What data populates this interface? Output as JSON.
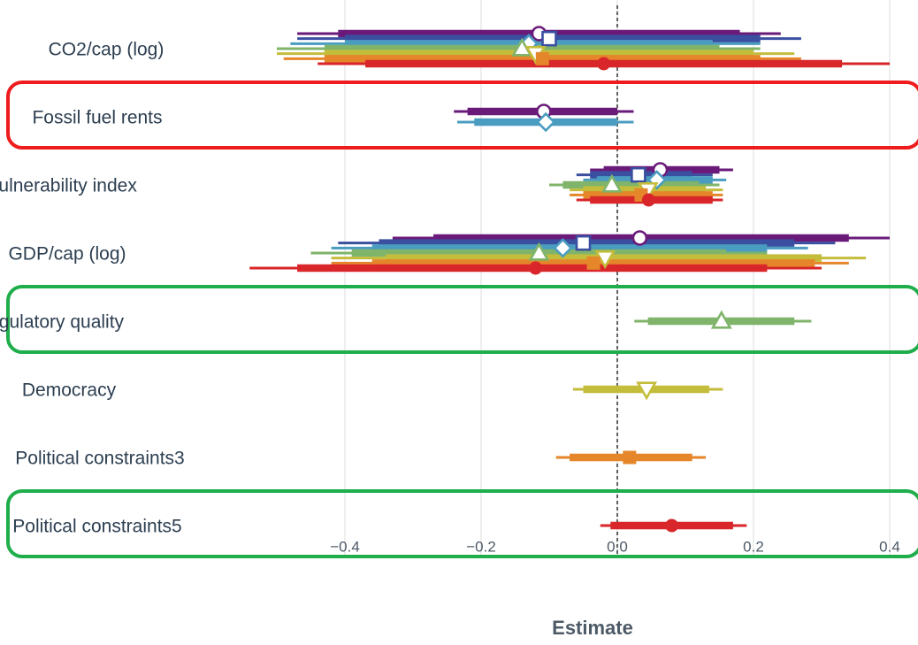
{
  "chart_data": {
    "type": "coefficient-plot",
    "title": "",
    "xlabel": "Estimate",
    "ylabel": "",
    "xlim": [
      -0.55,
      0.42
    ],
    "x_ticks": [
      -0.4,
      -0.2,
      0.0,
      0.2,
      0.4
    ],
    "x_tick_labels": [
      "−0.4",
      "−0.2",
      "0.0",
      "0.2",
      "0.4"
    ],
    "grid": true,
    "reference_line": 0,
    "series": [
      {
        "id": "m1",
        "color": "#6a1b7a",
        "marker": "circle-open"
      },
      {
        "id": "m2",
        "color": "#3a4fa0",
        "marker": "square-open"
      },
      {
        "id": "m3",
        "color": "#4a9cc0",
        "marker": "diamond-open"
      },
      {
        "id": "m4",
        "color": "#7fb46a",
        "marker": "triangle-up-open"
      },
      {
        "id": "m5",
        "color": "#c4bd3c",
        "marker": "triangle-down-open"
      },
      {
        "id": "m6",
        "color": "#e5862a",
        "marker": "square-filled"
      },
      {
        "id": "m7",
        "color": "#d8262a",
        "marker": "circle-filled"
      }
    ],
    "terms": [
      {
        "label": "CO2/cap (log)",
        "highlight": "none",
        "estimates": [
          {
            "series": "m1",
            "est": -0.115,
            "lo90": -0.41,
            "hi90": 0.18,
            "lo95": -0.47,
            "hi95": 0.24
          },
          {
            "series": "m2",
            "est": -0.1,
            "lo90": -0.4,
            "hi90": 0.21,
            "lo95": -0.47,
            "hi95": 0.27
          },
          {
            "series": "m3",
            "est": -0.13,
            "lo90": -0.4,
            "hi90": 0.14,
            "lo95": -0.48,
            "hi95": 0.21
          },
          {
            "series": "m4",
            "est": -0.14,
            "lo90": -0.43,
            "hi90": 0.15,
            "lo95": -0.5,
            "hi95": 0.21
          },
          {
            "series": "m5",
            "est": -0.12,
            "lo90": -0.43,
            "hi90": 0.2,
            "lo95": -0.5,
            "hi95": 0.26
          },
          {
            "series": "m6",
            "est": -0.11,
            "lo90": -0.43,
            "hi90": 0.21,
            "lo95": -0.49,
            "hi95": 0.27
          },
          {
            "series": "m7",
            "est": -0.02,
            "lo90": -0.37,
            "hi90": 0.33,
            "lo95": -0.44,
            "hi95": 0.4
          }
        ]
      },
      {
        "label": "Fossil fuel rents",
        "highlight": "red",
        "estimates": [
          {
            "series": "m1",
            "est": -0.108,
            "lo90": -0.22,
            "hi90": 0.0,
            "lo95": -0.24,
            "hi95": 0.024
          },
          {
            "series": "m3",
            "est": -0.105,
            "lo90": -0.21,
            "hi90": 0.0,
            "lo95": -0.235,
            "hi95": 0.024
          }
        ]
      },
      {
        "label": "Vulnerability index",
        "highlight": "none",
        "estimates": [
          {
            "series": "m1",
            "est": 0.063,
            "lo90": -0.02,
            "hi90": 0.15,
            "lo95": -0.04,
            "hi95": 0.17
          },
          {
            "series": "m2",
            "est": 0.031,
            "lo90": -0.04,
            "hi90": 0.11,
            "lo95": -0.06,
            "hi95": 0.14
          },
          {
            "series": "m3",
            "est": 0.058,
            "lo90": -0.03,
            "hi90": 0.14,
            "lo95": -0.05,
            "hi95": 0.16
          },
          {
            "series": "m4",
            "est": -0.008,
            "lo90": -0.08,
            "hi90": 0.12,
            "lo95": -0.1,
            "hi95": 0.15
          },
          {
            "series": "m5",
            "est": 0.045,
            "lo90": -0.05,
            "hi90": 0.13,
            "lo95": -0.07,
            "hi95": 0.155
          },
          {
            "series": "m6",
            "est": 0.035,
            "lo90": -0.05,
            "hi90": 0.14,
            "lo95": -0.07,
            "hi95": 0.155
          },
          {
            "series": "m7",
            "est": 0.046,
            "lo90": -0.04,
            "hi90": 0.14,
            "lo95": -0.06,
            "hi95": 0.155
          }
        ]
      },
      {
        "label": "GDP/cap (log)",
        "highlight": "none",
        "estimates": [
          {
            "series": "m1",
            "est": 0.033,
            "lo90": -0.27,
            "hi90": 0.34,
            "lo95": -0.33,
            "hi95": 0.4
          },
          {
            "series": "m2",
            "est": -0.05,
            "lo90": -0.35,
            "hi90": 0.26,
            "lo95": -0.41,
            "hi95": 0.32
          },
          {
            "series": "m3",
            "est": -0.08,
            "lo90": -0.36,
            "hi90": 0.22,
            "lo95": -0.42,
            "hi95": 0.28
          },
          {
            "series": "m4",
            "est": -0.115,
            "lo90": -0.39,
            "hi90": 0.16,
            "lo95": -0.45,
            "hi95": 0.22
          },
          {
            "series": "m5",
            "est": -0.018,
            "lo90": -0.34,
            "hi90": 0.3,
            "lo95": -0.42,
            "hi95": 0.365
          },
          {
            "series": "m6",
            "est": -0.035,
            "lo90": -0.36,
            "hi90": 0.29,
            "lo95": -0.42,
            "hi95": 0.34
          },
          {
            "series": "m7",
            "est": -0.12,
            "lo90": -0.47,
            "hi90": 0.22,
            "lo95": -0.54,
            "hi95": 0.3
          }
        ]
      },
      {
        "label": "Regulatory quality",
        "highlight": "green",
        "estimates": [
          {
            "series": "m4",
            "est": 0.153,
            "lo90": 0.045,
            "hi90": 0.26,
            "lo95": 0.025,
            "hi95": 0.285
          }
        ]
      },
      {
        "label": "Democracy",
        "highlight": "none",
        "estimates": [
          {
            "series": "m5",
            "est": 0.043,
            "lo90": -0.05,
            "hi90": 0.135,
            "lo95": -0.065,
            "hi95": 0.155
          }
        ]
      },
      {
        "label": "Political constraints3",
        "highlight": "none",
        "estimates": [
          {
            "series": "m6",
            "est": 0.018,
            "lo90": -0.07,
            "hi90": 0.11,
            "lo95": -0.09,
            "hi95": 0.13
          }
        ]
      },
      {
        "label": "Political constraints5",
        "highlight": "green",
        "estimates": [
          {
            "series": "m7",
            "est": 0.08,
            "lo90": -0.01,
            "hi90": 0.17,
            "lo95": -0.025,
            "hi95": 0.19
          }
        ]
      }
    ]
  }
}
